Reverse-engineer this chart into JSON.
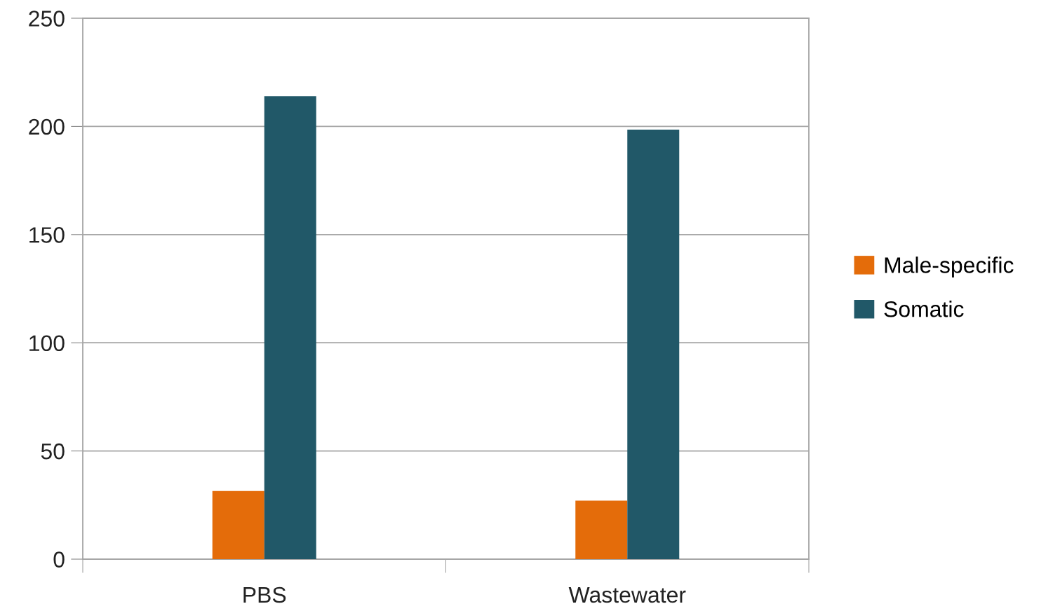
{
  "chart_data": {
    "type": "bar",
    "categories": [
      "PBS",
      "Wastewater"
    ],
    "series": [
      {
        "name": "Male-specific",
        "color": "#e46c0a",
        "values": [
          31.5,
          27
        ]
      },
      {
        "name": "Somatic",
        "color": "#215868",
        "values": [
          214,
          198.5
        ]
      }
    ],
    "ylim": [
      0,
      250
    ],
    "yticks": [
      0,
      50,
      100,
      150,
      200,
      250
    ],
    "grid": "y",
    "legend": "right"
  }
}
